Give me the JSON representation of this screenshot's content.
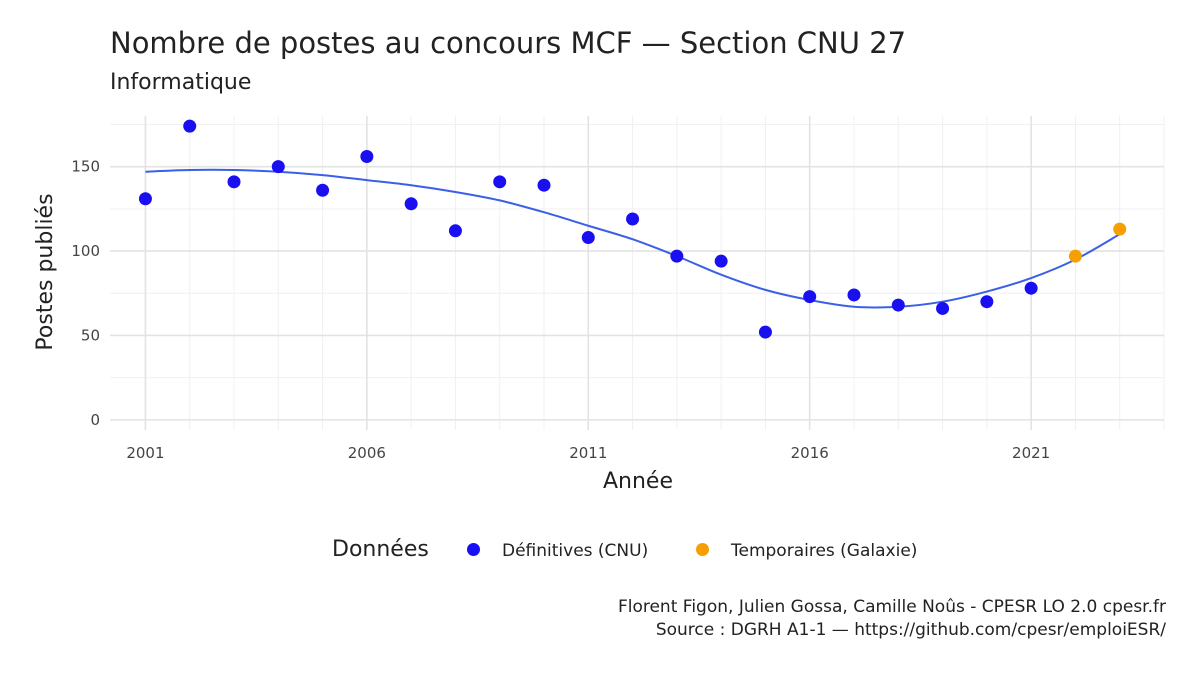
{
  "chart_data": {
    "type": "scatter",
    "title": "Nombre de postes au concours MCF  —  Section CNU 27",
    "subtitle": "Informatique",
    "xlabel": "Année",
    "ylabel": "Postes publiés",
    "xlim": [
      2000.2,
      2024.0
    ],
    "ylim": [
      -6,
      180
    ],
    "x_ticks": [
      2001,
      2006,
      2011,
      2016,
      2021
    ],
    "y_ticks": [
      0,
      50,
      100,
      150
    ],
    "grid": true,
    "legend_title": "Données",
    "legend_position": "bottom",
    "series": [
      {
        "name": "Définitives (CNU)",
        "color": "#1a0ff0",
        "points": [
          {
            "x": 2001,
            "y": 131
          },
          {
            "x": 2002,
            "y": 174
          },
          {
            "x": 2003,
            "y": 141
          },
          {
            "x": 2004,
            "y": 150
          },
          {
            "x": 2005,
            "y": 136
          },
          {
            "x": 2006,
            "y": 156
          },
          {
            "x": 2007,
            "y": 128
          },
          {
            "x": 2008,
            "y": 112
          },
          {
            "x": 2009,
            "y": 141
          },
          {
            "x": 2010,
            "y": 139
          },
          {
            "x": 2011,
            "y": 108
          },
          {
            "x": 2012,
            "y": 119
          },
          {
            "x": 2013,
            "y": 97
          },
          {
            "x": 2014,
            "y": 94
          },
          {
            "x": 2015,
            "y": 52
          },
          {
            "x": 2016,
            "y": 73
          },
          {
            "x": 2017,
            "y": 74
          },
          {
            "x": 2018,
            "y": 68
          },
          {
            "x": 2019,
            "y": 66
          },
          {
            "x": 2020,
            "y": 70
          },
          {
            "x": 2021,
            "y": 78
          }
        ]
      },
      {
        "name": "Temporaires (Galaxie)",
        "color": "#f5a000",
        "points": [
          {
            "x": 2022,
            "y": 97
          },
          {
            "x": 2023,
            "y": 113
          }
        ]
      }
    ],
    "trend": {
      "color": "#3b5fe8",
      "points": [
        {
          "x": 2001,
          "y": 147
        },
        {
          "x": 2002,
          "y": 148
        },
        {
          "x": 2003,
          "y": 148
        },
        {
          "x": 2004,
          "y": 147
        },
        {
          "x": 2005,
          "y": 145
        },
        {
          "x": 2006,
          "y": 142
        },
        {
          "x": 2007,
          "y": 139
        },
        {
          "x": 2008,
          "y": 135
        },
        {
          "x": 2009,
          "y": 130
        },
        {
          "x": 2010,
          "y": 123
        },
        {
          "x": 2011,
          "y": 115
        },
        {
          "x": 2012,
          "y": 107
        },
        {
          "x": 2013,
          "y": 97
        },
        {
          "x": 2014,
          "y": 86
        },
        {
          "x": 2015,
          "y": 77
        },
        {
          "x": 2016,
          "y": 71
        },
        {
          "x": 2017,
          "y": 67
        },
        {
          "x": 2018,
          "y": 67
        },
        {
          "x": 2019,
          "y": 70
        },
        {
          "x": 2020,
          "y": 76
        },
        {
          "x": 2021,
          "y": 84
        },
        {
          "x": 2022,
          "y": 95
        },
        {
          "x": 2023,
          "y": 110
        }
      ]
    }
  },
  "caption": {
    "line1": "Florent Figon, Julien Gossa, Camille Noûs - CPESR LO 2.0 cpesr.fr",
    "line2": "Source : DGRH A1-1 — https://github.com/cpesr/emploiESR/"
  }
}
